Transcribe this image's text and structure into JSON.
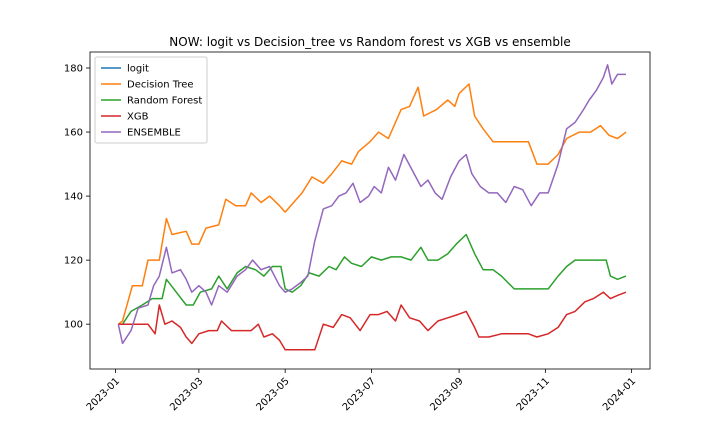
{
  "chart_data": {
    "type": "line",
    "title": "NOW: logit vs Decision_tree vs Random forest vs XGB vs ensemble",
    "xlabel": "",
    "ylabel": "",
    "x_domain": [
      "2023-01-01",
      "2024-01-01"
    ],
    "xlim": [
      "2022-12-14",
      "2024-01-14"
    ],
    "ylim": [
      86,
      185
    ],
    "legend_position": "top-left",
    "grid": false,
    "x_ticks": [
      "2023-01",
      "2023-03",
      "2023-05",
      "2023-07",
      "2023-09",
      "2023-11",
      "2024-01"
    ],
    "y_ticks": [
      100,
      120,
      140,
      160,
      180
    ],
    "series": [
      {
        "name": "logit",
        "color": "#1f77b4",
        "points": []
      },
      {
        "name": "Decision Tree",
        "color": "#ff7f0e",
        "points": [
          [
            "2023-01-03",
            100
          ],
          [
            "2023-01-06",
            101
          ],
          [
            "2023-01-13",
            112
          ],
          [
            "2023-01-20",
            112
          ],
          [
            "2023-01-24",
            120
          ],
          [
            "2023-02-01",
            120
          ],
          [
            "2023-02-06",
            133
          ],
          [
            "2023-02-10",
            128
          ],
          [
            "2023-02-20",
            129
          ],
          [
            "2023-02-24",
            125
          ],
          [
            "2023-03-01",
            125
          ],
          [
            "2023-03-06",
            130
          ],
          [
            "2023-03-15",
            131
          ],
          [
            "2023-03-20",
            139
          ],
          [
            "2023-03-27",
            137
          ],
          [
            "2023-04-03",
            137
          ],
          [
            "2023-04-07",
            141
          ],
          [
            "2023-04-14",
            138
          ],
          [
            "2023-04-20",
            140
          ],
          [
            "2023-04-27",
            137
          ],
          [
            "2023-05-01",
            135
          ],
          [
            "2023-05-07",
            138
          ],
          [
            "2023-05-13",
            141
          ],
          [
            "2023-05-20",
            146
          ],
          [
            "2023-05-28",
            144
          ],
          [
            "2023-06-03",
            147
          ],
          [
            "2023-06-10",
            151
          ],
          [
            "2023-06-17",
            150
          ],
          [
            "2023-06-22",
            154
          ],
          [
            "2023-06-30",
            157
          ],
          [
            "2023-07-06",
            160
          ],
          [
            "2023-07-13",
            158
          ],
          [
            "2023-07-22",
            167
          ],
          [
            "2023-07-28",
            168
          ],
          [
            "2023-08-03",
            174
          ],
          [
            "2023-08-07",
            165
          ],
          [
            "2023-08-16",
            167
          ],
          [
            "2023-08-24",
            170
          ],
          [
            "2023-08-29",
            168
          ],
          [
            "2023-09-01",
            172
          ],
          [
            "2023-09-08",
            175
          ],
          [
            "2023-09-12",
            165
          ],
          [
            "2023-09-18",
            161
          ],
          [
            "2023-09-25",
            157
          ],
          [
            "2023-10-01",
            157
          ],
          [
            "2023-10-10",
            157
          ],
          [
            "2023-10-20",
            157
          ],
          [
            "2023-10-26",
            150
          ],
          [
            "2023-11-03",
            150
          ],
          [
            "2023-11-10",
            153
          ],
          [
            "2023-11-16",
            158
          ],
          [
            "2023-11-25",
            160
          ],
          [
            "2023-12-03",
            160
          ],
          [
            "2023-12-10",
            162
          ],
          [
            "2023-12-16",
            159
          ],
          [
            "2023-12-22",
            158
          ],
          [
            "2023-12-28",
            160
          ]
        ]
      },
      {
        "name": "Random Forest",
        "color": "#2ca02c",
        "points": [
          [
            "2023-01-03",
            100
          ],
          [
            "2023-01-06",
            100
          ],
          [
            "2023-01-12",
            104
          ],
          [
            "2023-01-20",
            106
          ],
          [
            "2023-01-27",
            108
          ],
          [
            "2023-02-03",
            108
          ],
          [
            "2023-02-06",
            114
          ],
          [
            "2023-02-13",
            110
          ],
          [
            "2023-02-20",
            106
          ],
          [
            "2023-02-25",
            106
          ],
          [
            "2023-03-02",
            110
          ],
          [
            "2023-03-10",
            111
          ],
          [
            "2023-03-15",
            115
          ],
          [
            "2023-03-21",
            111
          ],
          [
            "2023-03-28",
            116
          ],
          [
            "2023-04-03",
            118
          ],
          [
            "2023-04-10",
            117
          ],
          [
            "2023-04-16",
            115
          ],
          [
            "2023-04-22",
            118
          ],
          [
            "2023-04-28",
            118
          ],
          [
            "2023-05-01",
            111
          ],
          [
            "2023-05-06",
            110
          ],
          [
            "2023-05-12",
            112
          ],
          [
            "2023-05-18",
            116
          ],
          [
            "2023-05-25",
            115
          ],
          [
            "2023-06-01",
            118
          ],
          [
            "2023-06-06",
            117
          ],
          [
            "2023-06-12",
            121
          ],
          [
            "2023-06-17",
            119
          ],
          [
            "2023-06-24",
            118
          ],
          [
            "2023-07-01",
            121
          ],
          [
            "2023-07-08",
            120
          ],
          [
            "2023-07-15",
            121
          ],
          [
            "2023-07-22",
            121
          ],
          [
            "2023-07-29",
            120
          ],
          [
            "2023-08-05",
            124
          ],
          [
            "2023-08-10",
            120
          ],
          [
            "2023-08-17",
            120
          ],
          [
            "2023-08-24",
            122
          ],
          [
            "2023-08-30",
            125
          ],
          [
            "2023-09-06",
            128
          ],
          [
            "2023-09-12",
            122
          ],
          [
            "2023-09-18",
            117
          ],
          [
            "2023-09-25",
            117
          ],
          [
            "2023-10-01",
            115
          ],
          [
            "2023-10-10",
            111
          ],
          [
            "2023-10-20",
            111
          ],
          [
            "2023-11-03",
            111
          ],
          [
            "2023-11-10",
            115
          ],
          [
            "2023-11-16",
            118
          ],
          [
            "2023-11-22",
            120
          ],
          [
            "2023-12-01",
            120
          ],
          [
            "2023-12-08",
            120
          ],
          [
            "2023-12-14",
            120
          ],
          [
            "2023-12-17",
            115
          ],
          [
            "2023-12-22",
            114
          ],
          [
            "2023-12-28",
            115
          ]
        ]
      },
      {
        "name": "XGB",
        "color": "#d62728",
        "points": [
          [
            "2023-01-03",
            100
          ],
          [
            "2023-01-10",
            100
          ],
          [
            "2023-01-17",
            100
          ],
          [
            "2023-01-24",
            100
          ],
          [
            "2023-01-29",
            97
          ],
          [
            "2023-02-01",
            106
          ],
          [
            "2023-02-05",
            100
          ],
          [
            "2023-02-10",
            101
          ],
          [
            "2023-02-16",
            99
          ],
          [
            "2023-02-20",
            96
          ],
          [
            "2023-02-24",
            94
          ],
          [
            "2023-03-01",
            97
          ],
          [
            "2023-03-08",
            98
          ],
          [
            "2023-03-14",
            98
          ],
          [
            "2023-03-17",
            101
          ],
          [
            "2023-03-24",
            98
          ],
          [
            "2023-03-31",
            98
          ],
          [
            "2023-04-07",
            98
          ],
          [
            "2023-04-12",
            100
          ],
          [
            "2023-04-16",
            96
          ],
          [
            "2023-04-22",
            97
          ],
          [
            "2023-04-27",
            95
          ],
          [
            "2023-05-01",
            92
          ],
          [
            "2023-05-08",
            92
          ],
          [
            "2023-05-16",
            92
          ],
          [
            "2023-05-22",
            92
          ],
          [
            "2023-05-28",
            100
          ],
          [
            "2023-06-04",
            99
          ],
          [
            "2023-06-10",
            103
          ],
          [
            "2023-06-16",
            102
          ],
          [
            "2023-06-23",
            98
          ],
          [
            "2023-06-30",
            103
          ],
          [
            "2023-07-06",
            103
          ],
          [
            "2023-07-12",
            104
          ],
          [
            "2023-07-18",
            101
          ],
          [
            "2023-07-22",
            106
          ],
          [
            "2023-07-28",
            102
          ],
          [
            "2023-08-04",
            101
          ],
          [
            "2023-08-10",
            98
          ],
          [
            "2023-08-17",
            101
          ],
          [
            "2023-08-24",
            102
          ],
          [
            "2023-08-31",
            103
          ],
          [
            "2023-09-06",
            104
          ],
          [
            "2023-09-12",
            99
          ],
          [
            "2023-09-15",
            96
          ],
          [
            "2023-09-22",
            96
          ],
          [
            "2023-10-01",
            97
          ],
          [
            "2023-10-10",
            97
          ],
          [
            "2023-10-20",
            97
          ],
          [
            "2023-10-26",
            96
          ],
          [
            "2023-11-03",
            97
          ],
          [
            "2023-11-10",
            99
          ],
          [
            "2023-11-16",
            103
          ],
          [
            "2023-11-22",
            104
          ],
          [
            "2023-11-29",
            107
          ],
          [
            "2023-12-05",
            108
          ],
          [
            "2023-12-12",
            110
          ],
          [
            "2023-12-17",
            108
          ],
          [
            "2023-12-22",
            109
          ],
          [
            "2023-12-28",
            110
          ]
        ]
      },
      {
        "name": "ENSEMBLE",
        "color": "#9467bd",
        "points": [
          [
            "2023-01-03",
            100
          ],
          [
            "2023-01-06",
            94
          ],
          [
            "2023-01-12",
            98
          ],
          [
            "2023-01-17",
            105
          ],
          [
            "2023-01-24",
            106
          ],
          [
            "2023-01-28",
            112
          ],
          [
            "2023-02-01",
            115
          ],
          [
            "2023-02-06",
            124
          ],
          [
            "2023-02-10",
            116
          ],
          [
            "2023-02-16",
            117
          ],
          [
            "2023-02-20",
            114
          ],
          [
            "2023-02-24",
            110
          ],
          [
            "2023-03-01",
            112
          ],
          [
            "2023-03-06",
            110
          ],
          [
            "2023-03-10",
            106
          ],
          [
            "2023-03-15",
            112
          ],
          [
            "2023-03-21",
            110
          ],
          [
            "2023-03-28",
            115
          ],
          [
            "2023-04-03",
            117
          ],
          [
            "2023-04-08",
            120
          ],
          [
            "2023-04-14",
            117
          ],
          [
            "2023-04-20",
            118
          ],
          [
            "2023-04-27",
            112
          ],
          [
            "2023-05-01",
            110
          ],
          [
            "2023-05-06",
            111
          ],
          [
            "2023-05-12",
            113
          ],
          [
            "2023-05-17",
            115
          ],
          [
            "2023-05-22",
            126
          ],
          [
            "2023-05-28",
            136
          ],
          [
            "2023-06-03",
            137
          ],
          [
            "2023-06-08",
            140
          ],
          [
            "2023-06-13",
            141
          ],
          [
            "2023-06-18",
            144
          ],
          [
            "2023-06-23",
            138
          ],
          [
            "2023-06-29",
            140
          ],
          [
            "2023-07-03",
            143
          ],
          [
            "2023-07-08",
            141
          ],
          [
            "2023-07-13",
            149
          ],
          [
            "2023-07-18",
            145
          ],
          [
            "2023-07-24",
            153
          ],
          [
            "2023-07-30",
            148
          ],
          [
            "2023-08-05",
            143
          ],
          [
            "2023-08-10",
            145
          ],
          [
            "2023-08-15",
            141
          ],
          [
            "2023-08-20",
            139
          ],
          [
            "2023-08-26",
            146
          ],
          [
            "2023-09-01",
            151
          ],
          [
            "2023-09-06",
            153
          ],
          [
            "2023-09-10",
            147
          ],
          [
            "2023-09-16",
            143
          ],
          [
            "2023-09-22",
            141
          ],
          [
            "2023-09-28",
            141
          ],
          [
            "2023-10-04",
            138
          ],
          [
            "2023-10-10",
            143
          ],
          [
            "2023-10-16",
            142
          ],
          [
            "2023-10-22",
            137
          ],
          [
            "2023-10-28",
            141
          ],
          [
            "2023-11-03",
            141
          ],
          [
            "2023-11-10",
            150
          ],
          [
            "2023-11-16",
            161
          ],
          [
            "2023-11-22",
            163
          ],
          [
            "2023-11-28",
            167
          ],
          [
            "2023-12-02",
            170
          ],
          [
            "2023-12-07",
            173
          ],
          [
            "2023-12-12",
            177
          ],
          [
            "2023-12-15",
            181
          ],
          [
            "2023-12-18",
            175
          ],
          [
            "2023-12-22",
            178
          ],
          [
            "2023-12-28",
            178
          ]
        ]
      }
    ]
  }
}
